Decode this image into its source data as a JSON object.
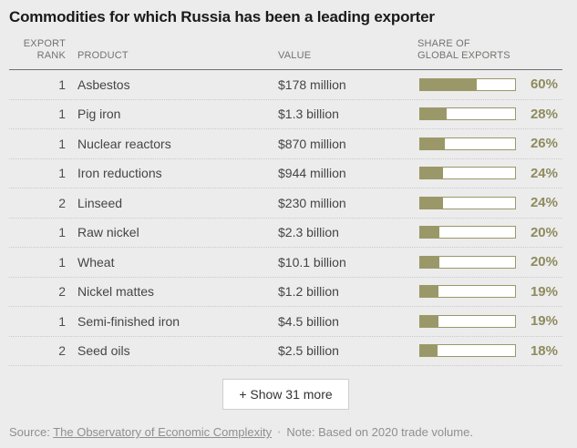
{
  "title": "Commodities for which Russia has been a leading exporter",
  "table": {
    "headers": {
      "rank_line1": "EXPORT",
      "rank_line2": "RANK",
      "product": "PRODUCT",
      "value": "VALUE",
      "share_line1": "SHARE OF",
      "share_line2": "GLOBAL EXPORTS"
    },
    "rows": [
      {
        "rank": "1",
        "product": "Asbestos",
        "value": "$178 million",
        "share_pct": 60,
        "share_label": "60%"
      },
      {
        "rank": "1",
        "product": "Pig iron",
        "value": "$1.3 billion",
        "share_pct": 28,
        "share_label": "28%"
      },
      {
        "rank": "1",
        "product": "Nuclear reactors",
        "value": "$870 million",
        "share_pct": 26,
        "share_label": "26%"
      },
      {
        "rank": "1",
        "product": "Iron reductions",
        "value": "$944 million",
        "share_pct": 24,
        "share_label": "24%"
      },
      {
        "rank": "2",
        "product": "Linseed",
        "value": "$230 million",
        "share_pct": 24,
        "share_label": "24%"
      },
      {
        "rank": "1",
        "product": "Raw nickel",
        "value": "$2.3 billion",
        "share_pct": 20,
        "share_label": "20%"
      },
      {
        "rank": "1",
        "product": "Wheat",
        "value": "$10.1 billion",
        "share_pct": 20,
        "share_label": "20%"
      },
      {
        "rank": "2",
        "product": "Nickel mattes",
        "value": "$1.2 billion",
        "share_pct": 19,
        "share_label": "19%"
      },
      {
        "rank": "1",
        "product": "Semi-finished iron",
        "value": "$4.5 billion",
        "share_pct": 19,
        "share_label": "19%"
      },
      {
        "rank": "2",
        "product": "Seed oils",
        "value": "$2.5 billion",
        "share_pct": 18,
        "share_label": "18%"
      }
    ]
  },
  "button": {
    "label": "+ Show 31 more"
  },
  "footer": {
    "source_prefix": "Source:",
    "source_link": "The Observatory of Economic Complexity",
    "separator": "·",
    "note": "Note: Based on 2020 trade volume."
  },
  "colors": {
    "accent_olive": "#9a9868",
    "percent_text": "#8e8b5e",
    "background": "#ececec",
    "bar_empty": "#ffffff"
  },
  "chart_data": {
    "type": "bar",
    "title": "Commodities for which Russia has been a leading exporter",
    "categories": [
      "Asbestos",
      "Pig iron",
      "Nuclear reactors",
      "Iron reductions",
      "Linseed",
      "Raw nickel",
      "Wheat",
      "Nickel mattes",
      "Semi-finished iron",
      "Seed oils"
    ],
    "series": [
      {
        "name": "Share of global exports (%)",
        "values": [
          60,
          28,
          26,
          24,
          24,
          20,
          20,
          19,
          19,
          18
        ]
      },
      {
        "name": "Export rank",
        "values": [
          1,
          1,
          1,
          1,
          2,
          1,
          1,
          2,
          1,
          2
        ]
      }
    ],
    "value_labels": [
      "$178 million",
      "$1.3 billion",
      "$870 million",
      "$944 million",
      "$230 million",
      "$2.3 billion",
      "$10.1 billion",
      "$1.2 billion",
      "$4.5 billion",
      "$2.5 billion"
    ],
    "xlabel": "Share of global exports",
    "ylabel": "Product",
    "xlim": [
      0,
      100
    ],
    "legend": false,
    "note": "Based on 2020 trade volume",
    "source": "The Observatory of Economic Complexity"
  }
}
